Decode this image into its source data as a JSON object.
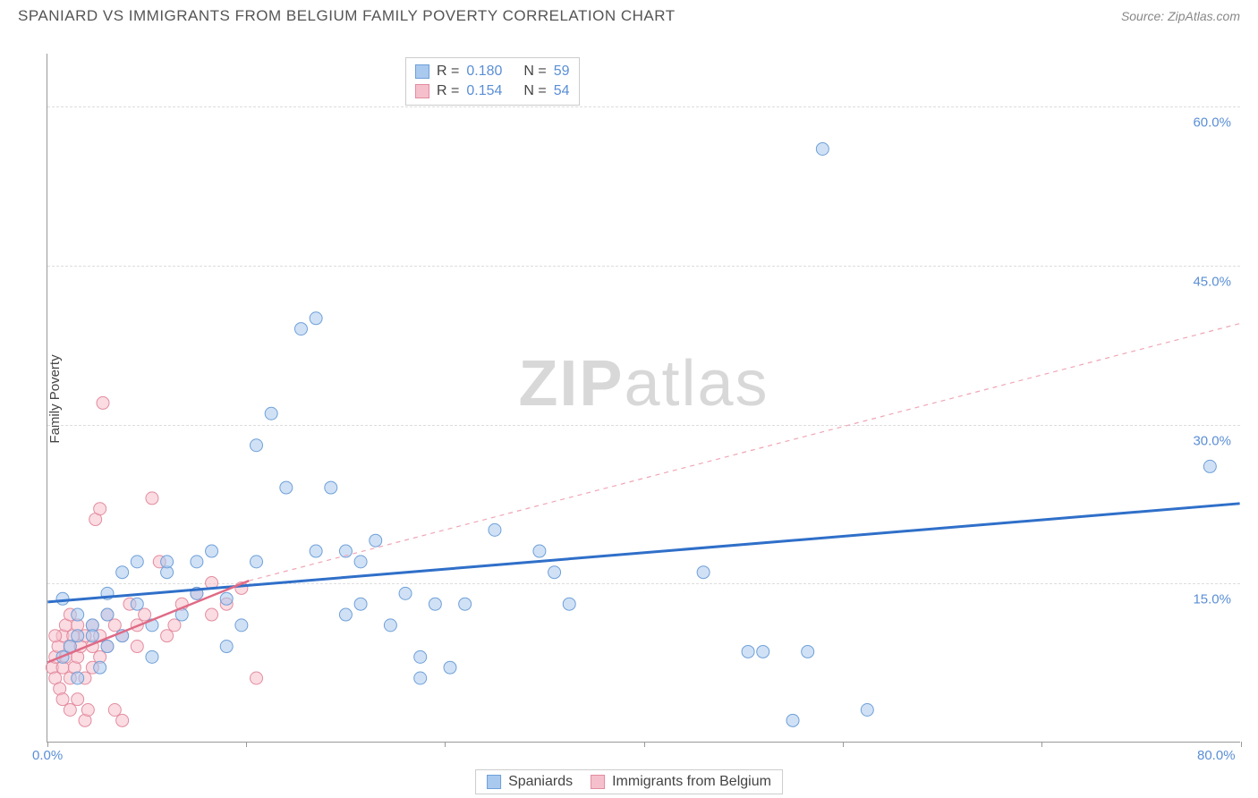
{
  "title": "SPANIARD VS IMMIGRANTS FROM BELGIUM FAMILY POVERTY CORRELATION CHART",
  "source": "Source: ZipAtlas.com",
  "ylabel": "Family Poverty",
  "watermark_zip": "ZIP",
  "watermark_atlas": "atlas",
  "chart": {
    "type": "scatter",
    "xlim": [
      0,
      80
    ],
    "ylim": [
      0,
      65
    ],
    "xticks": [
      0,
      13.3,
      26.6,
      40,
      53.3,
      66.6,
      80
    ],
    "yticks": [
      15,
      30,
      45,
      60
    ],
    "ytick_labels": [
      "15.0%",
      "30.0%",
      "45.0%",
      "60.0%"
    ],
    "x_origin_label": "0.0%",
    "x_max_label": "80.0%",
    "grid_color": "#dddddd",
    "axis_color": "#999999",
    "tick_label_color": "#5b8fd6",
    "background_color": "#ffffff",
    "marker_radius": 7,
    "marker_opacity": 0.55,
    "series": [
      {
        "name": "Spaniards",
        "color_fill": "#a9c9ef",
        "color_stroke": "#6fa0d8",
        "points": [
          [
            1,
            8
          ],
          [
            1.5,
            9
          ],
          [
            2,
            10
          ],
          [
            2,
            6
          ],
          [
            3,
            11
          ],
          [
            3.5,
            7
          ],
          [
            4,
            12
          ],
          [
            4,
            9
          ],
          [
            5,
            10
          ],
          [
            5,
            16
          ],
          [
            6,
            17
          ],
          [
            6,
            13
          ],
          [
            7,
            8
          ],
          [
            7,
            11
          ],
          [
            8,
            16
          ],
          [
            8,
            17
          ],
          [
            9,
            12
          ],
          [
            10,
            17
          ],
          [
            10,
            14
          ],
          [
            11,
            18
          ],
          [
            12,
            9
          ],
          [
            12,
            13.5
          ],
          [
            13,
            11
          ],
          [
            14,
            17
          ],
          [
            14,
            28
          ],
          [
            15,
            31
          ],
          [
            16,
            24
          ],
          [
            17,
            39
          ],
          [
            18,
            40
          ],
          [
            18,
            18
          ],
          [
            19,
            24
          ],
          [
            20,
            18
          ],
          [
            20,
            12
          ],
          [
            21,
            17
          ],
          [
            21,
            13
          ],
          [
            22,
            19
          ],
          [
            23,
            11
          ],
          [
            24,
            14
          ],
          [
            25,
            8
          ],
          [
            25,
            6
          ],
          [
            26,
            13
          ],
          [
            27,
            7
          ],
          [
            28,
            13
          ],
          [
            30,
            20
          ],
          [
            33,
            18
          ],
          [
            34,
            16
          ],
          [
            35,
            13
          ],
          [
            44,
            16
          ],
          [
            47,
            8.5
          ],
          [
            48,
            8.5
          ],
          [
            50,
            2
          ],
          [
            51,
            8.5
          ],
          [
            52,
            56
          ],
          [
            55,
            3
          ],
          [
            78,
            26
          ],
          [
            1,
            13.5
          ],
          [
            2,
            12
          ],
          [
            3,
            10
          ],
          [
            4,
            14
          ]
        ],
        "trend": {
          "x1": 0,
          "y1": 13.2,
          "x2": 80,
          "y2": 22.5,
          "color": "#2f6fc9",
          "width": 3,
          "dash": "none"
        }
      },
      {
        "name": "Immigrants from Belgium",
        "color_fill": "#f5c0cb",
        "color_stroke": "#e38ca0",
        "points": [
          [
            0.3,
            7
          ],
          [
            0.5,
            8
          ],
          [
            0.5,
            6
          ],
          [
            0.7,
            9
          ],
          [
            0.8,
            5
          ],
          [
            1,
            10
          ],
          [
            1,
            7
          ],
          [
            1,
            4
          ],
          [
            1.2,
            8
          ],
          [
            1.2,
            11
          ],
          [
            1.5,
            9
          ],
          [
            1.5,
            6
          ],
          [
            1.5,
            3
          ],
          [
            1.7,
            10
          ],
          [
            1.8,
            7
          ],
          [
            2,
            8
          ],
          [
            2,
            11
          ],
          [
            2,
            4
          ],
          [
            2.2,
            9
          ],
          [
            2.5,
            10
          ],
          [
            2.5,
            6
          ],
          [
            2.5,
            2
          ],
          [
            2.7,
            3
          ],
          [
            3,
            9
          ],
          [
            3,
            11
          ],
          [
            3,
            7
          ],
          [
            3.2,
            21
          ],
          [
            3.5,
            8
          ],
          [
            3.5,
            10
          ],
          [
            3.5,
            22
          ],
          [
            3.7,
            32
          ],
          [
            4,
            12
          ],
          [
            4,
            9
          ],
          [
            4.5,
            11
          ],
          [
            4.5,
            3
          ],
          [
            5,
            2
          ],
          [
            5,
            10
          ],
          [
            5.5,
            13
          ],
          [
            6,
            11
          ],
          [
            6,
            9
          ],
          [
            6.5,
            12
          ],
          [
            7,
            23
          ],
          [
            7.5,
            17
          ],
          [
            8,
            10
          ],
          [
            8.5,
            11
          ],
          [
            9,
            13
          ],
          [
            10,
            14
          ],
          [
            11,
            12
          ],
          [
            11,
            15
          ],
          [
            12,
            13
          ],
          [
            13,
            14.5
          ],
          [
            14,
            6
          ],
          [
            0.5,
            10
          ],
          [
            1.5,
            12
          ]
        ],
        "trend": {
          "x1": 0,
          "y1": 7.5,
          "x2": 13.5,
          "y2": 15.2,
          "color": "#e06a85",
          "width": 2.5,
          "dash": "none"
        },
        "trend_ext": {
          "x1": 13.5,
          "y1": 15.2,
          "x2": 80,
          "y2": 39.5,
          "color": "#f0a5b5",
          "width": 1.2,
          "dash": "5,5"
        }
      }
    ]
  },
  "stats": {
    "rows": [
      {
        "swatch_fill": "#a9c9ef",
        "swatch_stroke": "#6fa0d8",
        "r_label": "R =",
        "r_val": "0.180",
        "n_label": "N =",
        "n_val": "59"
      },
      {
        "swatch_fill": "#f5c0cb",
        "swatch_stroke": "#e38ca0",
        "r_label": "R =",
        "r_val": "0.154",
        "n_label": "N =",
        "n_val": "54"
      }
    ]
  },
  "legend": {
    "items": [
      {
        "swatch_fill": "#a9c9ef",
        "swatch_stroke": "#6fa0d8",
        "label": "Spaniards"
      },
      {
        "swatch_fill": "#f5c0cb",
        "swatch_stroke": "#e38ca0",
        "label": "Immigrants from Belgium"
      }
    ]
  }
}
